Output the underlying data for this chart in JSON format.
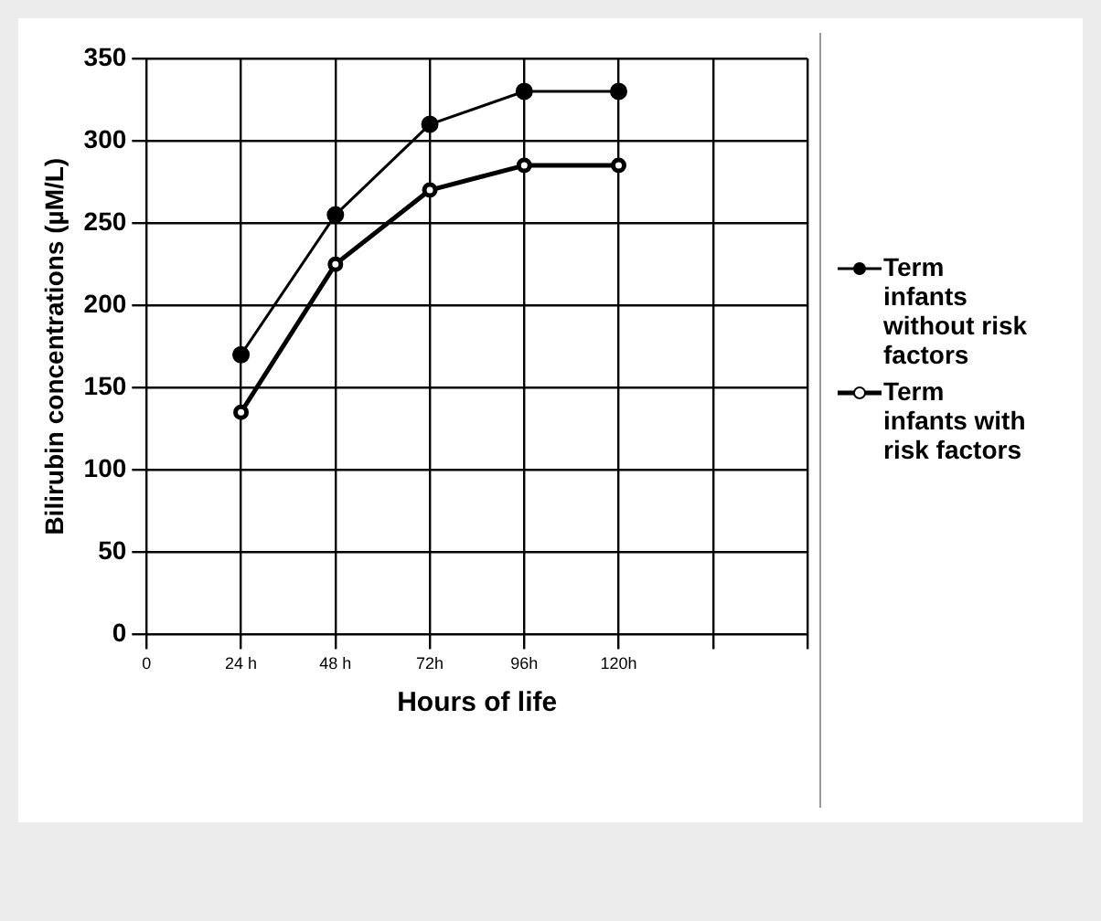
{
  "chart_data": {
    "type": "line",
    "xlabel": "Hours of life",
    "ylabel": "Bilirubin concentrations (µM/L)",
    "x": [
      24,
      48,
      72,
      96,
      120
    ],
    "series": [
      {
        "name": "Term infants without risk factors",
        "color": "#000000",
        "values": [
          170,
          255,
          310,
          330,
          330
        ]
      },
      {
        "name": "Term infants with risk factors",
        "color": "#000000",
        "values": [
          135,
          225,
          270,
          285,
          285
        ]
      }
    ],
    "xlim": [
      0,
      168
    ],
    "xticks": [
      0,
      {
        "value": 24,
        "label": "24 h"
      },
      {
        "value": 48,
        "label": "48 h"
      },
      {
        "value": 72,
        "label": "72h"
      },
      {
        "value": 96,
        "label": "96h"
      },
      {
        "value": 120,
        "label": "120h"
      },
      {
        "value": 144,
        "label": null
      },
      {
        "value": 168,
        "label": null
      }
    ],
    "ylim": [
      0,
      350
    ],
    "yticks": [
      0,
      50,
      100,
      150,
      200,
      250,
      300,
      350
    ],
    "grid": true,
    "legend": "right",
    "marker": "circle",
    "line_style": "solid"
  }
}
